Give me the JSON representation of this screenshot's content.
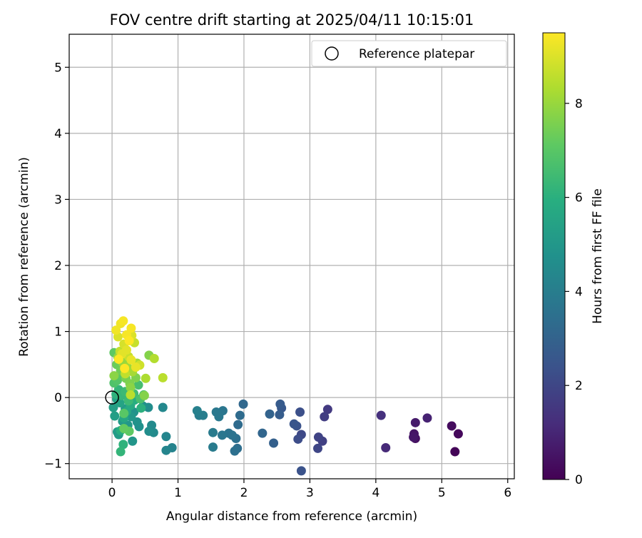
{
  "chart_data": {
    "type": "scatter",
    "title": "FOV centre drift starting at 2025/04/11 10:15:01",
    "xlabel": "Angular distance from reference (arcmin)",
    "ylabel": "Rotation from reference (arcmin)",
    "xlim": [
      -0.65,
      6.1
    ],
    "ylim": [
      -1.23,
      5.5
    ],
    "xticks": [
      0,
      1,
      2,
      3,
      4,
      5,
      6
    ],
    "yticks": [
      -1,
      0,
      1,
      2,
      3,
      4,
      5
    ],
    "grid": true,
    "legend": {
      "placement": "top-right",
      "entries": [
        "Reference platepar"
      ]
    },
    "reference_point": {
      "x": 0.0,
      "y": 0.0,
      "label": "Reference platepar"
    },
    "colorbar": {
      "label": "Hours from first FF file",
      "range": [
        0,
        9.5
      ],
      "ticks": [
        0,
        2,
        4,
        6,
        8
      ],
      "colormap": "viridis"
    },
    "points": [
      {
        "x": 5.2,
        "y": -0.82,
        "c": 0.1
      },
      {
        "x": 5.25,
        "y": -0.55,
        "c": 0.2
      },
      {
        "x": 5.15,
        "y": -0.43,
        "c": 0.3
      },
      {
        "x": 4.6,
        "y": -0.62,
        "c": 0.4
      },
      {
        "x": 4.58,
        "y": -0.55,
        "c": 0.5
      },
      {
        "x": 4.57,
        "y": -0.6,
        "c": 0.6
      },
      {
        "x": 4.6,
        "y": -0.38,
        "c": 0.7
      },
      {
        "x": 4.78,
        "y": -0.31,
        "c": 0.9
      },
      {
        "x": 4.15,
        "y": -0.76,
        "c": 1.1
      },
      {
        "x": 4.08,
        "y": -0.27,
        "c": 1.3
      },
      {
        "x": 3.27,
        "y": -0.18,
        "c": 1.6
      },
      {
        "x": 3.22,
        "y": -0.29,
        "c": 1.7
      },
      {
        "x": 3.19,
        "y": -0.66,
        "c": 1.8
      },
      {
        "x": 3.13,
        "y": -0.6,
        "c": 1.9
      },
      {
        "x": 3.12,
        "y": -0.77,
        "c": 2.0
      },
      {
        "x": 2.87,
        "y": -0.56,
        "c": 2.1
      },
      {
        "x": 2.82,
        "y": -0.63,
        "c": 2.2
      },
      {
        "x": 2.85,
        "y": -0.22,
        "c": 2.3
      },
      {
        "x": 2.8,
        "y": -0.43,
        "c": 2.4
      },
      {
        "x": 2.76,
        "y": -0.4,
        "c": 2.5
      },
      {
        "x": 2.87,
        "y": -1.11,
        "c": 2.4
      },
      {
        "x": 2.57,
        "y": -0.16,
        "c": 2.6
      },
      {
        "x": 2.55,
        "y": -0.1,
        "c": 2.7
      },
      {
        "x": 2.54,
        "y": -0.26,
        "c": 2.8
      },
      {
        "x": 2.45,
        "y": -0.69,
        "c": 2.9
      },
      {
        "x": 2.39,
        "y": -0.25,
        "c": 3.0
      },
      {
        "x": 2.28,
        "y": -0.54,
        "c": 3.1
      },
      {
        "x": 1.99,
        "y": -0.1,
        "c": 3.2
      },
      {
        "x": 1.94,
        "y": -0.27,
        "c": 3.3
      },
      {
        "x": 1.91,
        "y": -0.41,
        "c": 3.3
      },
      {
        "x": 1.9,
        "y": -0.77,
        "c": 3.4
      },
      {
        "x": 1.86,
        "y": -0.81,
        "c": 3.5
      },
      {
        "x": 1.88,
        "y": -0.62,
        "c": 3.5
      },
      {
        "x": 1.82,
        "y": -0.57,
        "c": 3.6
      },
      {
        "x": 1.77,
        "y": -0.54,
        "c": 3.6
      },
      {
        "x": 1.67,
        "y": -0.57,
        "c": 3.7
      },
      {
        "x": 1.68,
        "y": -0.2,
        "c": 3.7
      },
      {
        "x": 1.62,
        "y": -0.29,
        "c": 3.8
      },
      {
        "x": 1.58,
        "y": -0.22,
        "c": 3.8
      },
      {
        "x": 1.53,
        "y": -0.53,
        "c": 3.9
      },
      {
        "x": 1.53,
        "y": -0.75,
        "c": 3.9
      },
      {
        "x": 1.38,
        "y": -0.27,
        "c": 4.0
      },
      {
        "x": 1.32,
        "y": -0.27,
        "c": 4.0
      },
      {
        "x": 1.29,
        "y": -0.2,
        "c": 4.1
      },
      {
        "x": 0.91,
        "y": -0.76,
        "c": 4.2
      },
      {
        "x": 0.82,
        "y": -0.8,
        "c": 4.3
      },
      {
        "x": 0.82,
        "y": -0.59,
        "c": 4.3
      },
      {
        "x": 0.77,
        "y": -0.15,
        "c": 4.4
      },
      {
        "x": 0.63,
        "y": -0.53,
        "c": 4.5
      },
      {
        "x": 0.6,
        "y": -0.42,
        "c": 4.5
      },
      {
        "x": 0.56,
        "y": -0.51,
        "c": 4.6
      },
      {
        "x": 0.55,
        "y": -0.15,
        "c": 4.6
      },
      {
        "x": 0.47,
        "y": -0.13,
        "c": 4.7
      },
      {
        "x": 0.41,
        "y": -0.44,
        "c": 4.7
      },
      {
        "x": 0.38,
        "y": -0.37,
        "c": 4.8
      },
      {
        "x": 0.33,
        "y": -0.22,
        "c": 4.8
      },
      {
        "x": 0.31,
        "y": -0.66,
        "c": 4.9
      },
      {
        "x": 0.29,
        "y": -0.29,
        "c": 5.0
      },
      {
        "x": 0.24,
        "y": -0.42,
        "c": 5.0
      },
      {
        "x": 0.2,
        "y": -0.17,
        "c": 5.1
      },
      {
        "x": 0.16,
        "y": -0.36,
        "c": 5.1
      },
      {
        "x": 0.1,
        "y": -0.56,
        "c": 5.2
      },
      {
        "x": 0.08,
        "y": -0.52,
        "c": 5.2
      },
      {
        "x": 0.04,
        "y": -0.28,
        "c": 5.3
      },
      {
        "x": 0.02,
        "y": -0.15,
        "c": 5.3
      },
      {
        "x": 0.07,
        "y": -0.02,
        "c": 5.4
      },
      {
        "x": 0.12,
        "y": -0.08,
        "c": 5.5
      },
      {
        "x": 0.18,
        "y": -0.31,
        "c": 5.6
      },
      {
        "x": 0.22,
        "y": -0.21,
        "c": 5.7
      },
      {
        "x": 0.28,
        "y": -0.12,
        "c": 5.8
      },
      {
        "x": 0.34,
        "y": -0.04,
        "c": 5.9
      },
      {
        "x": 0.44,
        "y": -0.16,
        "c": 6.0
      },
      {
        "x": 0.13,
        "y": -0.5,
        "c": 5.9
      },
      {
        "x": 0.17,
        "y": -0.71,
        "c": 6.1
      },
      {
        "x": 0.13,
        "y": -0.82,
        "c": 6.2
      },
      {
        "x": 0.06,
        "y": 0.05,
        "c": 6.1
      },
      {
        "x": 0.1,
        "y": 0.12,
        "c": 6.2
      },
      {
        "x": 0.15,
        "y": 0.03,
        "c": 6.3
      },
      {
        "x": 0.2,
        "y": 0.09,
        "c": 6.4
      },
      {
        "x": 0.25,
        "y": -0.05,
        "c": 6.4
      },
      {
        "x": 0.33,
        "y": 0.06,
        "c": 6.5
      },
      {
        "x": 0.4,
        "y": 0.19,
        "c": 6.6
      },
      {
        "x": 0.43,
        "y": -0.02,
        "c": 6.7
      },
      {
        "x": 0.48,
        "y": 0.04,
        "c": 6.8
      },
      {
        "x": 0.03,
        "y": 0.22,
        "c": 6.8
      },
      {
        "x": 0.08,
        "y": 0.26,
        "c": 6.9
      },
      {
        "x": 0.11,
        "y": 0.33,
        "c": 7.0
      },
      {
        "x": 0.18,
        "y": -0.24,
        "c": 7.0
      },
      {
        "x": 0.26,
        "y": -0.51,
        "c": 7.1
      },
      {
        "x": 0.18,
        "y": -0.47,
        "c": 7.2
      },
      {
        "x": 0.03,
        "y": 0.68,
        "c": 7.1
      },
      {
        "x": 0.07,
        "y": 0.5,
        "c": 7.3
      },
      {
        "x": 0.13,
        "y": 0.41,
        "c": 7.4
      },
      {
        "x": 0.21,
        "y": 0.29,
        "c": 7.5
      },
      {
        "x": 0.27,
        "y": 0.21,
        "c": 7.6
      },
      {
        "x": 0.36,
        "y": 0.3,
        "c": 7.6
      },
      {
        "x": 0.56,
        "y": 0.64,
        "c": 7.7
      },
      {
        "x": 0.49,
        "y": 0.03,
        "c": 7.7
      },
      {
        "x": 0.28,
        "y": 0.15,
        "c": 7.8
      },
      {
        "x": 0.03,
        "y": 0.33,
        "c": 7.8
      },
      {
        "x": 0.09,
        "y": 0.61,
        "c": 7.9
      },
      {
        "x": 0.16,
        "y": 0.53,
        "c": 8.0
      },
      {
        "x": 0.23,
        "y": 0.47,
        "c": 8.1
      },
      {
        "x": 0.31,
        "y": 0.39,
        "c": 8.2
      },
      {
        "x": 0.38,
        "y": 0.52,
        "c": 8.2
      },
      {
        "x": 0.51,
        "y": 0.29,
        "c": 8.3
      },
      {
        "x": 0.64,
        "y": 0.59,
        "c": 8.4
      },
      {
        "x": 0.77,
        "y": 0.3,
        "c": 8.5
      },
      {
        "x": 0.28,
        "y": 0.04,
        "c": 8.5
      },
      {
        "x": 0.2,
        "y": 0.36,
        "c": 8.6
      },
      {
        "x": 0.12,
        "y": 0.7,
        "c": 8.6
      },
      {
        "x": 0.25,
        "y": 0.62,
        "c": 8.7
      },
      {
        "x": 0.34,
        "y": 0.83,
        "c": 8.7
      },
      {
        "x": 0.42,
        "y": 0.49,
        "c": 8.8
      },
      {
        "x": 0.18,
        "y": 0.81,
        "c": 8.9
      },
      {
        "x": 0.09,
        "y": 0.92,
        "c": 9.0
      },
      {
        "x": 0.3,
        "y": 0.94,
        "c": 9.0
      },
      {
        "x": 0.15,
        "y": 0.66,
        "c": 9.1
      },
      {
        "x": 0.22,
        "y": 0.72,
        "c": 9.1
      },
      {
        "x": 0.29,
        "y": 0.57,
        "c": 9.2
      },
      {
        "x": 0.36,
        "y": 0.46,
        "c": 9.2
      },
      {
        "x": 0.06,
        "y": 1.02,
        "c": 9.3
      },
      {
        "x": 0.13,
        "y": 1.12,
        "c": 9.3
      },
      {
        "x": 0.17,
        "y": 1.16,
        "c": 9.4
      },
      {
        "x": 0.22,
        "y": 0.95,
        "c": 9.4
      },
      {
        "x": 0.29,
        "y": 1.05,
        "c": 9.4
      },
      {
        "x": 0.1,
        "y": 0.58,
        "c": 9.5
      },
      {
        "x": 0.19,
        "y": 0.44,
        "c": 9.5
      },
      {
        "x": 0.26,
        "y": 0.86,
        "c": 9.5
      }
    ]
  }
}
